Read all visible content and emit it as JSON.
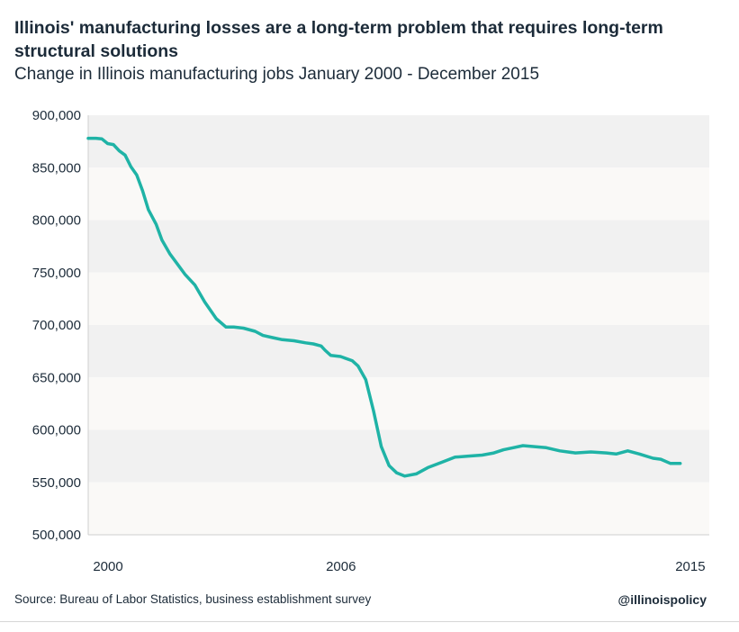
{
  "chart_data": {
    "type": "line",
    "title": "Illinois' manufacturing losses are a long-term problem that requires long-term structural solutions",
    "subtitle": "Change in Illinois manufacturing jobs January 2000 - December 2015",
    "x_range": [
      2000,
      2016
    ],
    "x_ticks": [
      {
        "value": 2000,
        "label": "2000"
      },
      {
        "value": 2006,
        "label": "2006"
      },
      {
        "value": 2015,
        "label": "2015"
      }
    ],
    "ylim": [
      500000,
      900000
    ],
    "y_ticks": [
      {
        "value": 900000,
        "label": "900,000"
      },
      {
        "value": 850000,
        "label": "850,000"
      },
      {
        "value": 800000,
        "label": "800,000"
      },
      {
        "value": 750000,
        "label": "750,000"
      },
      {
        "value": 700000,
        "label": "700,000"
      },
      {
        "value": 650000,
        "label": "650,000"
      },
      {
        "value": 600000,
        "label": "600,000"
      },
      {
        "value": 550000,
        "label": "550,000"
      },
      {
        "value": 500000,
        "label": "500,000"
      }
    ],
    "grid": "alternating horizontal bands",
    "series": [
      {
        "color": "#1fb3a6",
        "x": [
          2000.0,
          2000.2,
          2000.35,
          2000.5,
          2000.65,
          2000.8,
          2000.95,
          2001.1,
          2001.25,
          2001.4,
          2001.55,
          2001.75,
          2001.9,
          2002.1,
          2002.3,
          2002.5,
          2002.75,
          2003.0,
          2003.3,
          2003.55,
          2003.75,
          2004.0,
          2004.3,
          2004.5,
          2004.75,
          2005.0,
          2005.3,
          2005.6,
          2005.8,
          2006.0,
          2006.1,
          2006.25,
          2006.5,
          2006.8,
          2006.95,
          2007.15,
          2007.35,
          2007.55,
          2007.75,
          2007.95,
          2008.15,
          2008.45,
          2008.75,
          2009.1,
          2009.45,
          2009.8,
          2010.15,
          2010.45,
          2010.7,
          2010.95,
          2011.2,
          2011.5,
          2011.8,
          2012.15,
          2012.55,
          2012.95,
          2013.35,
          2013.6,
          2013.9,
          2014.2,
          2014.55,
          2014.75,
          2015.0,
          2015.25
        ],
        "y": [
          878000,
          878000,
          877500,
          873000,
          872000,
          866000,
          862000,
          851000,
          843000,
          828000,
          810000,
          796000,
          781000,
          768000,
          758000,
          748000,
          738000,
          722000,
          706000,
          698000,
          698000,
          697000,
          694000,
          690000,
          688000,
          686000,
          685000,
          683000,
          682000,
          680000,
          676000,
          671000,
          670000,
          666000,
          661000,
          648000,
          618000,
          584000,
          566000,
          559000,
          556000,
          558000,
          564000,
          569000,
          574000,
          575000,
          576000,
          578000,
          581000,
          583000,
          585000,
          584000,
          583000,
          580000,
          578000,
          579000,
          578000,
          577000,
          580000,
          577000,
          573000,
          572000,
          568000,
          568000
        ]
      }
    ],
    "source": "Source: Bureau of Labor Statistics, business establishment survey",
    "credit": "@illinoispolicy"
  }
}
